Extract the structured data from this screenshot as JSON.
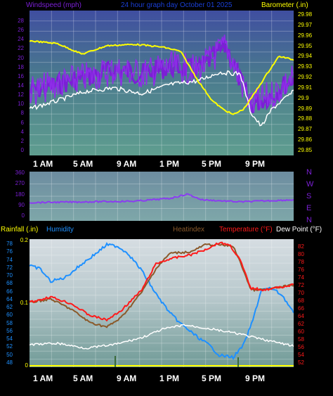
{
  "top": {
    "wind_label": "Windspeed (mph)",
    "title": "24 hour graph day   October 01 2025",
    "baro_label": "Barometer (.in)",
    "left_ticks": [
      "28",
      "26",
      "24",
      "22",
      "20",
      "18",
      "16",
      "14",
      "12",
      "10",
      "8",
      "6",
      "4",
      "2",
      "0"
    ],
    "right_ticks": [
      "29.98",
      "29.97",
      "29.96",
      "29.95",
      "29.94",
      "29.93",
      "29.92",
      "29.91",
      "29.9",
      "29.89",
      "29.88",
      "29.87",
      "29.86",
      "29.85"
    ]
  },
  "direction": {
    "left_ticks": [
      "360",
      "270",
      "180",
      "90",
      "0"
    ],
    "compass": [
      "N",
      "W",
      "S",
      "E",
      "N"
    ]
  },
  "bottom": {
    "rain_label": "Rainfall (.in)",
    "humidity_label": "Humidity",
    "heatindex_label": "Heatindex",
    "temp_label": "Temperature (°F)",
    "dew_label": "Dew Point (°F)",
    "hum_ticks": [
      "78",
      "76",
      "74",
      "72",
      "70",
      "68",
      "66",
      "64",
      "62",
      "60",
      "58",
      "56",
      "54",
      "52",
      "50",
      "48"
    ],
    "rain_ticks": [
      "0.2",
      "0.1",
      "0"
    ],
    "temp_ticks": [
      "82",
      "80",
      "78",
      "76",
      "74",
      "72",
      "70",
      "68",
      "66",
      "64",
      "62",
      "60",
      "58",
      "56",
      "54",
      "52"
    ]
  },
  "x_labels": [
    "1 AM",
    "5 AM",
    "9 AM",
    "1 PM",
    "5 PM",
    "9 PM"
  ],
  "colors": {
    "wind": "#7b1fd6",
    "wind_gust": "#8e2de8",
    "barometer": "#ffff00",
    "white_series": "#ffffff",
    "humidity": "#1e90ff",
    "temperature": "#ff1a1a",
    "heatindex": "#8b5a2b",
    "dewpoint": "#ffffff",
    "direction": "#8a3df0",
    "rain": "#ffff00"
  }
}
